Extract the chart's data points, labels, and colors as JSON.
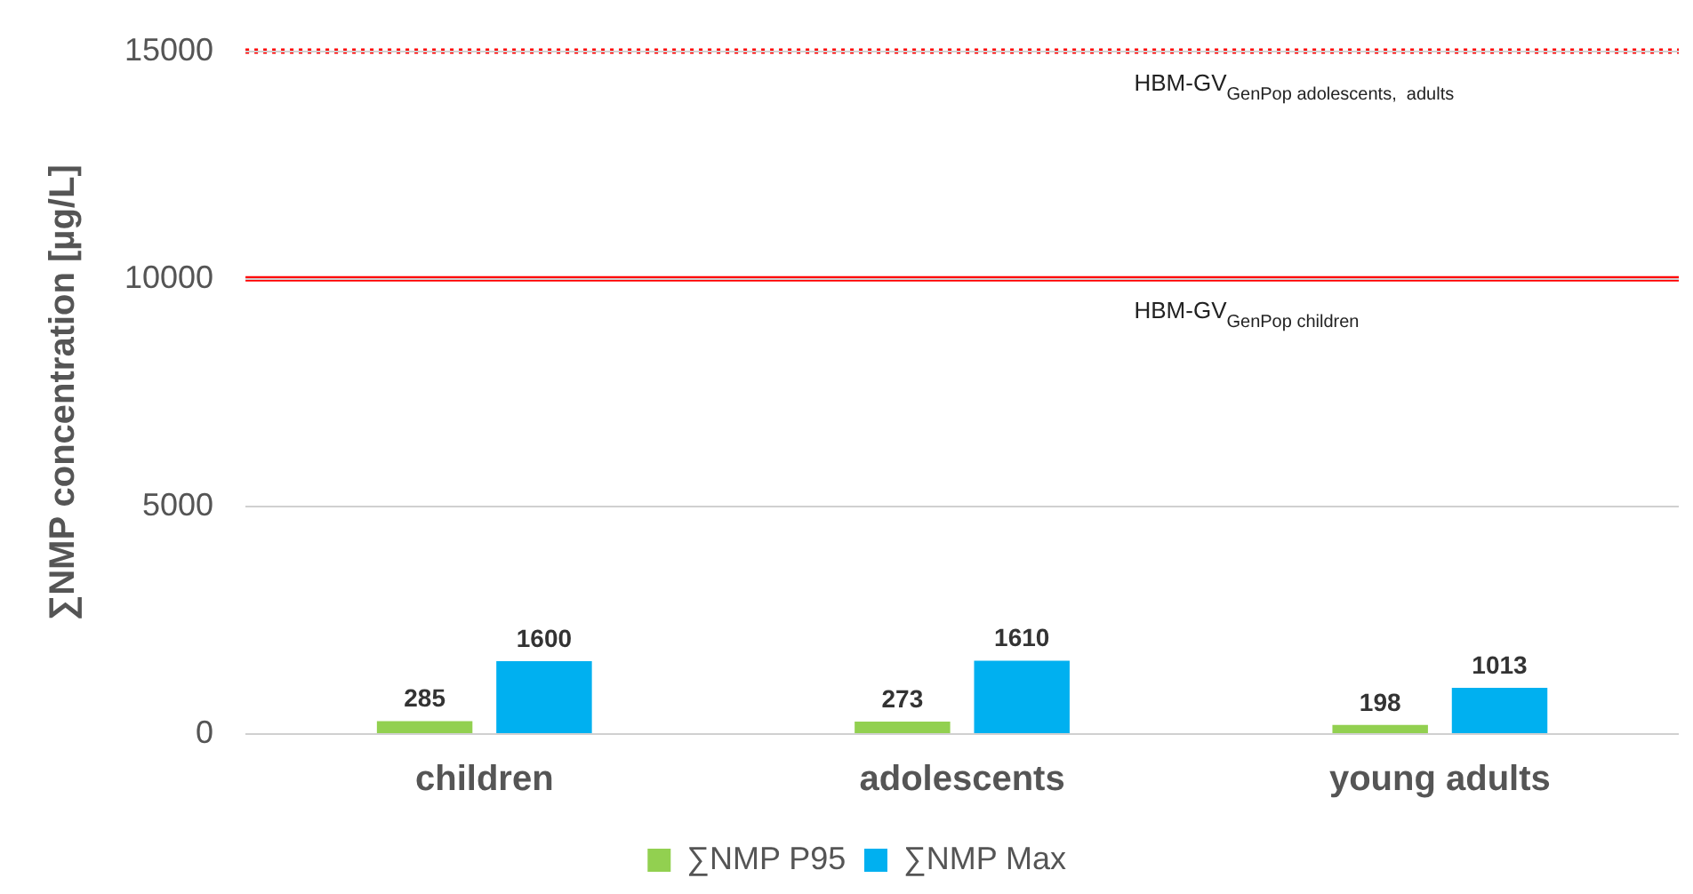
{
  "chart_data": {
    "type": "bar",
    "ylabel": "∑NMP concentration [µg/L]",
    "categories": [
      "children",
      "adolescents",
      "young adults"
    ],
    "series": [
      {
        "name": "∑NMP P95",
        "color": "#92d050",
        "values": [
          285,
          273,
          198
        ]
      },
      {
        "name": "∑NMP Max",
        "color": "#00b0f0",
        "values": [
          1600,
          1610,
          1013
        ]
      }
    ],
    "ylim": [
      0,
      15000
    ],
    "yticks": [
      0,
      5000,
      10000,
      15000
    ],
    "grid": "y",
    "legend": "bottom",
    "data_labels": true,
    "ref_lines": [
      {
        "axis": "y",
        "value": 15000,
        "label": "HBM-GV$_{GenPop adolescents,  adults}$",
        "color": "#ff0000",
        "line_style": "dotted"
      },
      {
        "axis": "y",
        "value": 10000,
        "label": "HBM-GV$_{GenPop children}$",
        "color": "#ff0000",
        "line_style": "solid"
      }
    ]
  }
}
